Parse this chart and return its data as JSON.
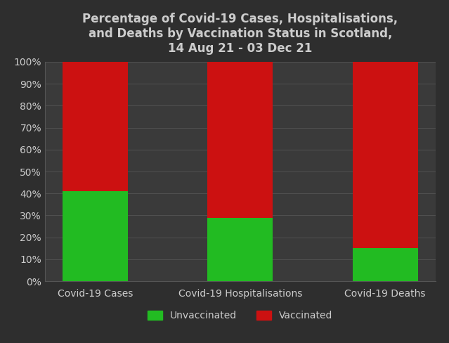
{
  "title": "Percentage of Covid-19 Cases, Hospitalisations,\nand Deaths by Vaccination Status in Scotland,\n14 Aug 21 - 03 Dec 21",
  "categories": [
    "Covid-19 Cases",
    "Covid-19 Hospitalisations",
    "Covid-19 Deaths"
  ],
  "unvaccinated": [
    41,
    29,
    15
  ],
  "vaccinated": [
    59,
    71,
    85
  ],
  "unvaccinated_color": "#22bb22",
  "vaccinated_color": "#cc1111",
  "background_color": "#2e2e2e",
  "axes_bg_color": "#3a3a3a",
  "text_color": "#cccccc",
  "grid_color": "#555555",
  "bar_width": 0.45,
  "ylim": [
    0,
    100
  ],
  "yticks": [
    0,
    10,
    20,
    30,
    40,
    50,
    60,
    70,
    80,
    90,
    100
  ],
  "ytick_labels": [
    "0%",
    "10%",
    "20%",
    "30%",
    "40%",
    "50%",
    "60%",
    "70%",
    "80%",
    "90%",
    "100%"
  ],
  "legend_labels": [
    "Unvaccinated",
    "Vaccinated"
  ],
  "title_fontsize": 12,
  "tick_fontsize": 10,
  "legend_fontsize": 10
}
